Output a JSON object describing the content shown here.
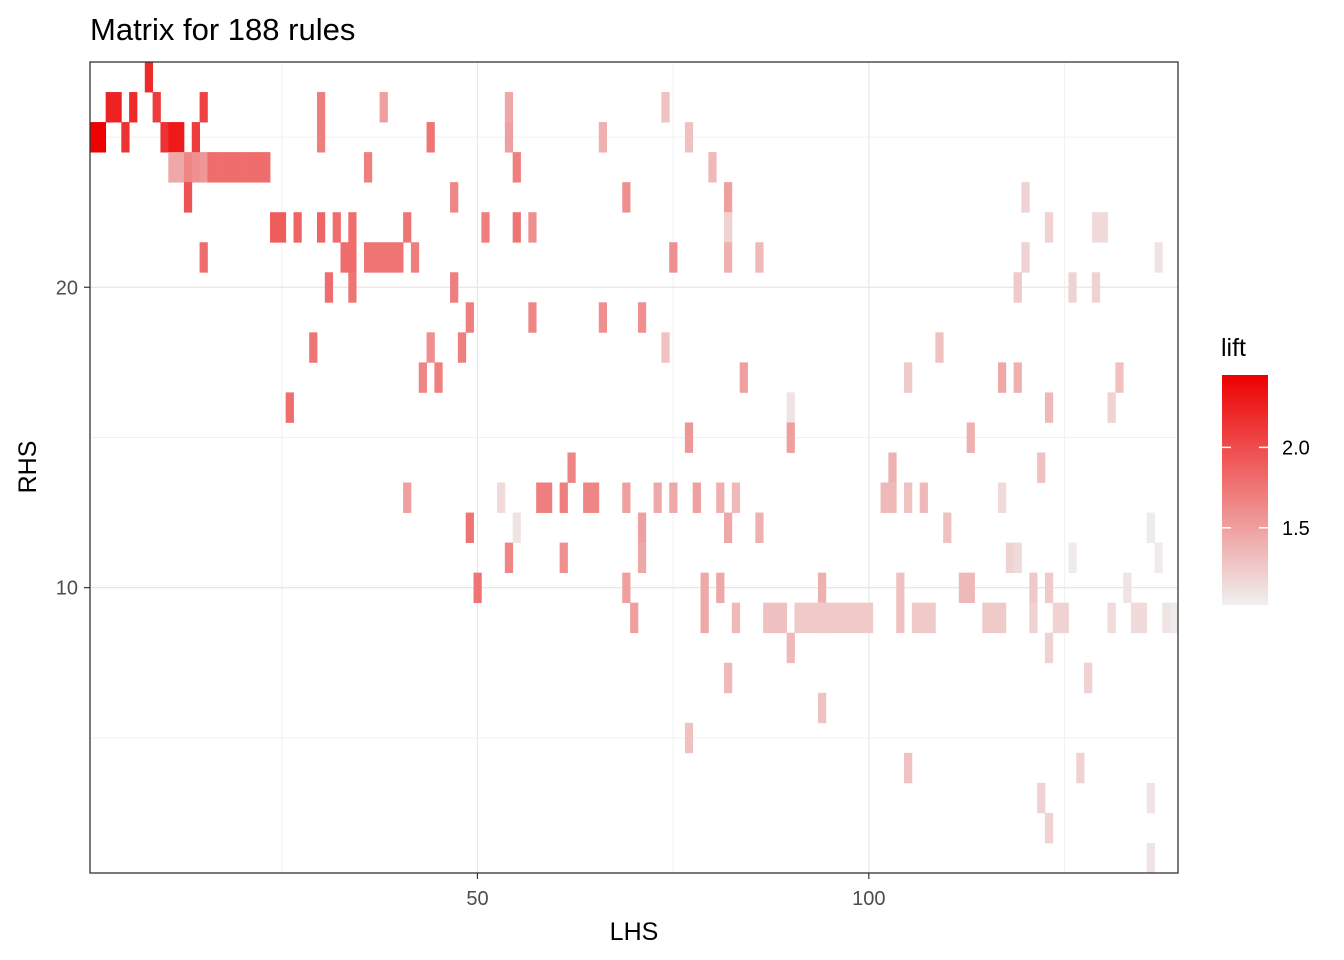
{
  "chart_data": {
    "type": "heatmap",
    "title": "Matrix for 188 rules",
    "xlabel": "LHS",
    "ylabel": "RHS",
    "xlim": [
      0.5,
      139.5
    ],
    "ylim": [
      0.5,
      27.5
    ],
    "x_ticks": [
      50,
      100
    ],
    "y_ticks": [
      10,
      20
    ],
    "grid": true,
    "legend": {
      "title": "lift",
      "position": "right",
      "min": 1.02,
      "max": 2.45,
      "ticks": [
        1.5,
        2.0
      ],
      "low_color": "#f0f0f0",
      "high_color": "#ee0000"
    },
    "cells": [
      [
        8,
        27,
        2.2
      ],
      [
        3,
        26,
        2.25
      ],
      [
        4,
        26,
        2.25
      ],
      [
        6,
        26,
        2.2
      ],
      [
        9,
        26,
        2.1
      ],
      [
        15,
        26,
        2.05
      ],
      [
        1,
        25,
        2.45
      ],
      [
        2,
        25,
        2.45
      ],
      [
        5,
        25,
        2.15
      ],
      [
        10,
        25,
        2.15
      ],
      [
        11,
        25,
        2.3
      ],
      [
        12,
        25,
        2.3
      ],
      [
        14,
        25,
        2.1
      ],
      [
        30,
        26,
        1.7
      ],
      [
        38,
        26,
        1.5
      ],
      [
        54,
        26,
        1.45
      ],
      [
        74,
        26,
        1.3
      ],
      [
        30,
        25,
        1.7
      ],
      [
        44,
        25,
        1.75
      ],
      [
        54,
        25,
        1.5
      ],
      [
        66,
        25,
        1.4
      ],
      [
        77,
        25,
        1.3
      ],
      [
        11,
        24,
        1.45
      ],
      [
        12,
        24,
        1.45
      ],
      [
        13,
        24,
        1.65
      ],
      [
        14,
        24,
        1.6
      ],
      [
        15,
        24,
        1.55
      ],
      [
        16,
        24,
        1.8
      ],
      [
        17,
        24,
        1.8
      ],
      [
        18,
        24,
        1.8
      ],
      [
        19,
        24,
        1.8
      ],
      [
        20,
        24,
        1.8
      ],
      [
        21,
        24,
        1.8
      ],
      [
        22,
        24,
        1.8
      ],
      [
        23,
        24,
        1.8
      ],
      [
        36,
        24,
        1.7
      ],
      [
        55,
        24,
        1.7
      ],
      [
        80,
        24,
        1.35
      ],
      [
        47,
        23,
        1.65
      ],
      [
        69,
        23,
        1.6
      ],
      [
        82,
        23,
        1.5
      ],
      [
        120,
        23,
        1.2
      ],
      [
        13,
        23,
        1.95
      ],
      [
        24,
        22,
        1.9
      ],
      [
        25,
        22,
        1.9
      ],
      [
        27,
        22,
        1.85
      ],
      [
        30,
        22,
        1.85
      ],
      [
        32,
        22,
        1.8
      ],
      [
        34,
        22,
        1.8
      ],
      [
        41,
        22,
        1.75
      ],
      [
        51,
        22,
        1.7
      ],
      [
        55,
        22,
        1.75
      ],
      [
        57,
        22,
        1.6
      ],
      [
        82,
        22,
        1.2
      ],
      [
        123,
        22,
        1.2
      ],
      [
        129,
        22,
        1.15
      ],
      [
        130,
        22,
        1.15
      ],
      [
        15,
        21,
        1.8
      ],
      [
        33,
        21,
        1.8
      ],
      [
        34,
        21,
        1.8
      ],
      [
        36,
        21,
        1.75
      ],
      [
        37,
        21,
        1.75
      ],
      [
        38,
        21,
        1.75
      ],
      [
        39,
        21,
        1.75
      ],
      [
        40,
        21,
        1.75
      ],
      [
        42,
        21,
        1.7
      ],
      [
        75,
        21,
        1.6
      ],
      [
        82,
        21,
        1.4
      ],
      [
        86,
        21,
        1.35
      ],
      [
        120,
        21,
        1.2
      ],
      [
        137,
        21,
        1.1
      ],
      [
        31,
        20,
        1.8
      ],
      [
        34,
        20,
        1.75
      ],
      [
        47,
        20,
        1.7
      ],
      [
        119,
        20,
        1.25
      ],
      [
        126,
        20,
        1.2
      ],
      [
        129,
        20,
        1.2
      ],
      [
        49,
        19,
        1.7
      ],
      [
        57,
        19,
        1.65
      ],
      [
        66,
        19,
        1.6
      ],
      [
        71,
        19,
        1.6
      ],
      [
        29,
        18,
        1.75
      ],
      [
        44,
        18,
        1.6
      ],
      [
        48,
        18,
        1.7
      ],
      [
        74,
        18,
        1.3
      ],
      [
        109,
        18,
        1.3
      ],
      [
        43,
        17,
        1.65
      ],
      [
        45,
        17,
        1.7
      ],
      [
        84,
        17,
        1.5
      ],
      [
        105,
        17,
        1.25
      ],
      [
        117,
        17,
        1.45
      ],
      [
        119,
        17,
        1.4
      ],
      [
        132,
        17,
        1.3
      ],
      [
        26,
        16,
        1.8
      ],
      [
        90,
        16,
        1.1
      ],
      [
        123,
        16,
        1.35
      ],
      [
        131,
        16,
        1.2
      ],
      [
        77,
        15,
        1.55
      ],
      [
        90,
        15,
        1.5
      ],
      [
        113,
        15,
        1.4
      ],
      [
        62,
        14,
        1.65
      ],
      [
        103,
        14,
        1.4
      ],
      [
        122,
        14,
        1.3
      ],
      [
        41,
        13,
        1.5
      ],
      [
        53,
        13,
        1.15
      ],
      [
        58,
        13,
        1.7
      ],
      [
        59,
        13,
        1.7
      ],
      [
        61,
        13,
        1.7
      ],
      [
        64,
        13,
        1.65
      ],
      [
        65,
        13,
        1.65
      ],
      [
        69,
        13,
        1.5
      ],
      [
        73,
        13,
        1.45
      ],
      [
        75,
        13,
        1.45
      ],
      [
        78,
        13,
        1.5
      ],
      [
        81,
        13,
        1.4
      ],
      [
        83,
        13,
        1.35
      ],
      [
        102,
        13,
        1.35
      ],
      [
        103,
        13,
        1.35
      ],
      [
        105,
        13,
        1.3
      ],
      [
        107,
        13,
        1.35
      ],
      [
        117,
        13,
        1.15
      ],
      [
        49,
        12,
        1.75
      ],
      [
        55,
        12,
        1.1
      ],
      [
        71,
        12,
        1.5
      ],
      [
        82,
        12,
        1.45
      ],
      [
        86,
        12,
        1.4
      ],
      [
        110,
        12,
        1.3
      ],
      [
        136,
        12,
        1.05
      ],
      [
        54,
        11,
        1.65
      ],
      [
        61,
        11,
        1.6
      ],
      [
        71,
        11,
        1.45
      ],
      [
        118,
        11,
        1.2
      ],
      [
        119,
        11,
        1.15
      ],
      [
        126,
        11,
        1.05
      ],
      [
        137,
        11,
        1.05
      ],
      [
        50,
        10,
        1.75
      ],
      [
        69,
        10,
        1.5
      ],
      [
        79,
        10,
        1.45
      ],
      [
        81,
        10,
        1.45
      ],
      [
        94,
        10,
        1.4
      ],
      [
        104,
        10,
        1.3
      ],
      [
        112,
        10,
        1.35
      ],
      [
        113,
        10,
        1.35
      ],
      [
        121,
        10,
        1.25
      ],
      [
        123,
        10,
        1.25
      ],
      [
        133,
        10,
        1.1
      ],
      [
        70,
        9,
        1.5
      ],
      [
        79,
        9,
        1.45
      ],
      [
        83,
        9,
        1.35
      ],
      [
        87,
        9,
        1.3
      ],
      [
        88,
        9,
        1.3
      ],
      [
        89,
        9,
        1.3
      ],
      [
        91,
        9,
        1.25
      ],
      [
        92,
        9,
        1.25
      ],
      [
        93,
        9,
        1.25
      ],
      [
        94,
        9,
        1.25
      ],
      [
        95,
        9,
        1.25
      ],
      [
        96,
        9,
        1.25
      ],
      [
        97,
        9,
        1.25
      ],
      [
        98,
        9,
        1.25
      ],
      [
        99,
        9,
        1.25
      ],
      [
        100,
        9,
        1.25
      ],
      [
        104,
        9,
        1.3
      ],
      [
        106,
        9,
        1.25
      ],
      [
        107,
        9,
        1.25
      ],
      [
        108,
        9,
        1.25
      ],
      [
        115,
        9,
        1.25
      ],
      [
        116,
        9,
        1.25
      ],
      [
        117,
        9,
        1.25
      ],
      [
        121,
        9,
        1.2
      ],
      [
        124,
        9,
        1.2
      ],
      [
        125,
        9,
        1.2
      ],
      [
        131,
        9,
        1.15
      ],
      [
        134,
        9,
        1.15
      ],
      [
        135,
        9,
        1.15
      ],
      [
        138,
        9,
        1.1
      ],
      [
        139,
        9,
        1.05
      ],
      [
        90,
        8,
        1.35
      ],
      [
        123,
        8,
        1.2
      ],
      [
        82,
        7,
        1.35
      ],
      [
        128,
        7,
        1.2
      ],
      [
        94,
        6,
        1.3
      ],
      [
        77,
        5,
        1.3
      ],
      [
        105,
        4,
        1.3
      ],
      [
        127,
        4,
        1.2
      ],
      [
        122,
        3,
        1.2
      ],
      [
        136,
        3,
        1.1
      ],
      [
        123,
        2,
        1.2
      ],
      [
        136,
        1,
        1.1
      ]
    ]
  }
}
